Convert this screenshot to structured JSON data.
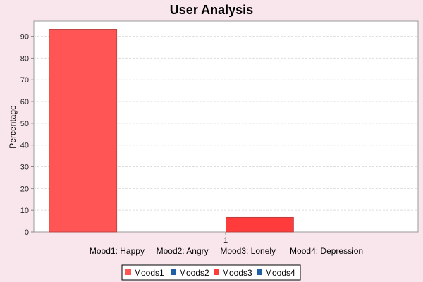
{
  "chart_data": {
    "type": "bar",
    "title": "User Analysis",
    "xlabel": "Mood1: Happy     Mood2: Angry     Mood3: Lonely      Mood4: Depression",
    "ylabel": "Percentage",
    "ylim": [
      0,
      97
    ],
    "yticks": [
      0,
      10,
      20,
      30,
      40,
      50,
      60,
      70,
      80,
      90
    ],
    "categories": [
      "1"
    ],
    "grid": true,
    "legend_position": "bottom",
    "series": [
      {
        "name": "Moods1",
        "color": "#ff5555",
        "values": [
          93.3
        ]
      },
      {
        "name": "Moods2",
        "color": "#1f5fa8",
        "values": [
          0
        ]
      },
      {
        "name": "Moods3",
        "color": "#ff3b3b",
        "values": [
          6.7
        ]
      },
      {
        "name": "Moods4",
        "color": "#1f5fa8",
        "values": [
          0
        ]
      }
    ]
  }
}
